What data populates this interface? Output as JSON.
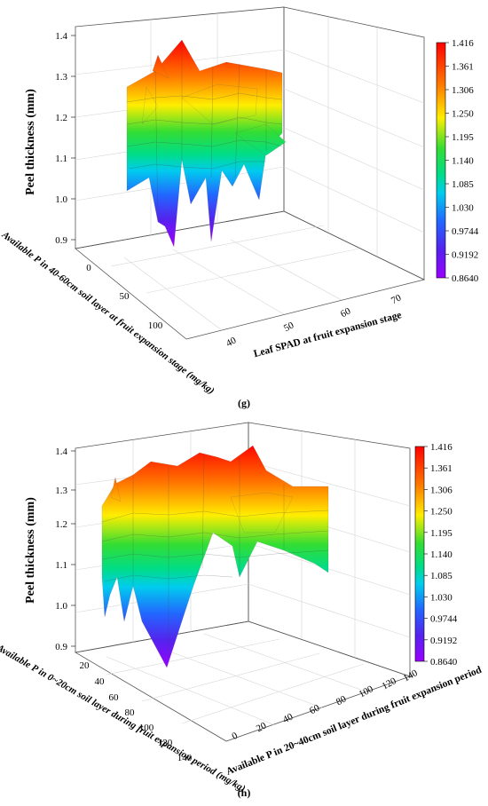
{
  "chart_data": [
    {
      "id": "g",
      "type": "surface3d",
      "caption": "(g)",
      "zlabel": "Peel thickness (mm)",
      "xlabel": "Available P in 40-60cm soil layer at fruit expansion stage (mg/kg)",
      "ylabel": "Leaf SPAD at fruit expansion stage",
      "zticks": [
        "0.9",
        "1.0",
        "1.1",
        "1.2",
        "1.3",
        "1.4"
      ],
      "xticks": [
        "0",
        "50",
        "100"
      ],
      "yticks": [
        "40",
        "50",
        "60",
        "70"
      ],
      "zlim": [
        0.864,
        1.416
      ],
      "colorbar_ticks": [
        "1.416",
        "1.361",
        "1.306",
        "1.250",
        "1.195",
        "1.140",
        "1.085",
        "1.030",
        "0.9744",
        "0.9192",
        "0.8640"
      ]
    },
    {
      "id": "h",
      "type": "surface3d",
      "caption": "(h)",
      "zlabel": "Peel thickness (mm)",
      "xlabel": "Available P in 0~20cm soil layer during fruit expansion period (mg/kg)",
      "ylabel": "Available P in 20~40cm soil layer during fruit expansion period",
      "zticks": [
        "0.9",
        "1.0",
        "1.1",
        "1.2",
        "1.3",
        "1.4"
      ],
      "xticks": [
        "20",
        "40",
        "60",
        "80",
        "100",
        "120",
        "140"
      ],
      "yticks": [
        "0",
        "20",
        "40",
        "60",
        "80",
        "100",
        "120",
        "140"
      ],
      "zlim": [
        0.864,
        1.416
      ],
      "colorbar_ticks": [
        "1.416",
        "1.361",
        "1.306",
        "1.250",
        "1.195",
        "1.140",
        "1.085",
        "1.030",
        "0.9744",
        "0.9192",
        "0.8640"
      ]
    }
  ]
}
